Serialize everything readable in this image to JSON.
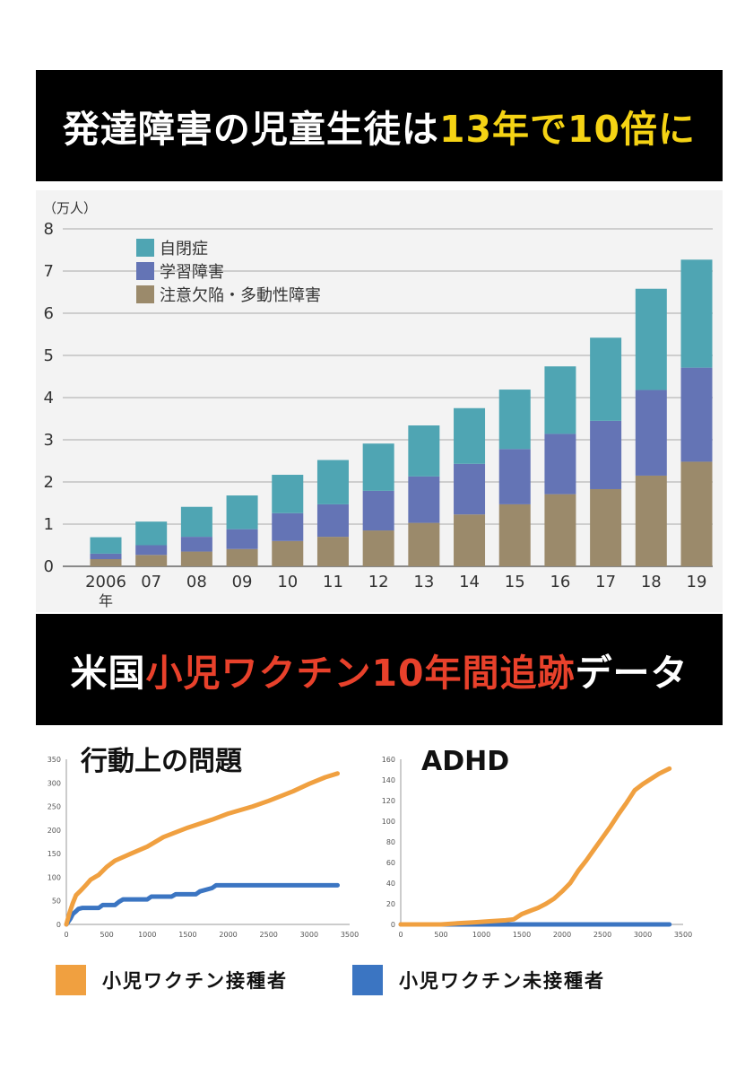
{
  "banner1": {
    "prefix": "発達障害の児童生徒は",
    "highlight": "13年で10倍に",
    "highlight_color": "#f5d314"
  },
  "banner2": {
    "prefix": "米国",
    "highlight": "小児ワクチン10年間追跡",
    "suffix": "データ",
    "highlight_color": "#e8412b"
  },
  "chart_data": [
    {
      "type": "bar",
      "stacked": true,
      "unit_label": "（万人）",
      "categories": [
        "2006",
        "07",
        "08",
        "09",
        "10",
        "11",
        "12",
        "13",
        "14",
        "15",
        "16",
        "17",
        "18",
        "19"
      ],
      "first_category_suffix": "年",
      "series": [
        {
          "name": "注意欠陥・多動性障害",
          "color": "#9b8a6b",
          "values": [
            0.17,
            0.27,
            0.35,
            0.41,
            0.6,
            0.7,
            0.85,
            1.03,
            1.23,
            1.47,
            1.71,
            1.83,
            2.15,
            2.48
          ]
        },
        {
          "name": "学習障害",
          "color": "#6474b5",
          "values": [
            0.13,
            0.23,
            0.35,
            0.47,
            0.66,
            0.77,
            0.94,
            1.1,
            1.2,
            1.31,
            1.43,
            1.62,
            2.03,
            2.23
          ]
        },
        {
          "name": "自閉症",
          "color": "#4fa5b3",
          "values": [
            0.39,
            0.56,
            0.71,
            0.8,
            0.91,
            1.05,
            1.12,
            1.21,
            1.32,
            1.41,
            1.6,
            1.97,
            2.4,
            2.56
          ]
        }
      ],
      "legend_order": [
        "自閉症",
        "学習障害",
        "注意欠陥・多動性障害"
      ],
      "ylim": [
        0,
        8
      ],
      "yticks": [
        0,
        1,
        2,
        3,
        4,
        5,
        6,
        7,
        8
      ],
      "grid": true,
      "legend_position": "top-left"
    },
    {
      "type": "line",
      "title": "行動上の問題",
      "xlim": [
        0,
        3500
      ],
      "xticks": [
        0,
        500,
        1000,
        1500,
        2000,
        2500,
        3000,
        3500
      ],
      "ylim": [
        0,
        350
      ],
      "yticks": [
        0,
        50,
        100,
        150,
        200,
        250,
        300,
        350
      ],
      "series": [
        {
          "name": "小児ワクチン接種者",
          "color": "#f0a040",
          "x": [
            0,
            40,
            80,
            120,
            180,
            250,
            300,
            400,
            500,
            600,
            800,
            1000,
            1200,
            1500,
            1800,
            2000,
            2300,
            2500,
            2800,
            3000,
            3200,
            3350
          ],
          "y": [
            0,
            25,
            45,
            62,
            72,
            85,
            95,
            105,
            122,
            135,
            150,
            165,
            185,
            205,
            222,
            235,
            250,
            262,
            282,
            298,
            312,
            320
          ]
        },
        {
          "name": "小児ワクチン未接種者",
          "color": "#3b75c2",
          "x": [
            0,
            50,
            80,
            120,
            150,
            200,
            400,
            450,
            600,
            650,
            700,
            1000,
            1050,
            1300,
            1350,
            1600,
            1650,
            1800,
            1850,
            3350
          ],
          "y": [
            0,
            12,
            22,
            28,
            33,
            35,
            35,
            41,
            41,
            48,
            53,
            53,
            59,
            59,
            64,
            64,
            70,
            77,
            83,
            83
          ]
        }
      ]
    },
    {
      "type": "line",
      "title": "ADHD",
      "xlim": [
        0,
        3500
      ],
      "xticks": [
        0,
        500,
        1000,
        1500,
        2000,
        2500,
        3000,
        3500
      ],
      "ylim": [
        0,
        160
      ],
      "yticks": [
        0,
        20,
        40,
        60,
        80,
        100,
        120,
        140,
        160
      ],
      "series": [
        {
          "name": "小児ワクチン接種者",
          "color": "#f0a040",
          "x": [
            0,
            500,
            700,
            900,
            1100,
            1300,
            1400,
            1500,
            1600,
            1700,
            1800,
            1900,
            2000,
            2100,
            2200,
            2300,
            2400,
            2500,
            2600,
            2700,
            2800,
            2900,
            3000,
            3100,
            3200,
            3330
          ],
          "y": [
            0,
            0,
            1,
            2,
            3,
            4,
            5,
            10,
            13,
            16,
            20,
            25,
            32,
            40,
            52,
            62,
            73,
            84,
            95,
            107,
            118,
            130,
            136,
            141,
            146,
            151
          ]
        },
        {
          "name": "小児ワクチン未接種者",
          "color": "#3b75c2",
          "x": [
            0,
            3330
          ],
          "y": [
            0,
            0
          ]
        }
      ]
    }
  ],
  "legend": {
    "items": [
      {
        "label": "小児ワクチン接種者",
        "color": "#f0a040"
      },
      {
        "label": "小児ワクチン未接種者",
        "color": "#3b75c2"
      }
    ]
  }
}
